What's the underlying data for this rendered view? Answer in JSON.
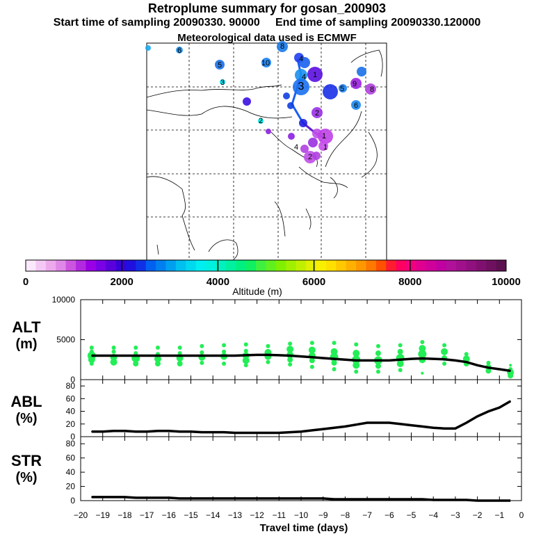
{
  "header": {
    "title": "Retroplume summary for gosan_200903",
    "sampling_line": "Start time of sampling 20090330. 90000     End time of sampling 20090330.120000",
    "met_line": "Meteorological data used is ECMWF"
  },
  "colorbar": {
    "label": "Altitude (m)",
    "ticks": [
      "0",
      "2000",
      "4000",
      "6000",
      "8000",
      "10000"
    ],
    "colors": [
      "#fce8fc",
      "#f4c8f4",
      "#ecaaec",
      "#e088e8",
      "#cc55e0",
      "#b22ae0",
      "#9a00e6",
      "#7a00e6",
      "#5a00dc",
      "#3a00d8",
      "#2010e0",
      "#1030e8",
      "#0060f0",
      "#0080f0",
      "#00a0f0",
      "#00c0f0",
      "#00d8f0",
      "#00eef0",
      "#00f0e0",
      "#00f0c0",
      "#00f0a0",
      "#00f080",
      "#10f060",
      "#40f040",
      "#60f020",
      "#80f000",
      "#a0f000",
      "#c0f000",
      "#e0f000",
      "#f8f000",
      "#ffe000",
      "#ffc800",
      "#ffb000",
      "#ff9800",
      "#ff7800",
      "#ff5000",
      "#ff1c30",
      "#ff0060",
      "#f20080",
      "#e00090",
      "#d0009a",
      "#c000a0",
      "#b0109a",
      "#a0108c",
      "#901080",
      "#801070",
      "#701060",
      "#5c1050"
    ]
  },
  "map_labels": [
    {
      "text": "8"
    },
    {
      "text": "6"
    },
    {
      "text": "5"
    },
    {
      "text": "10"
    },
    {
      "text": "3"
    },
    {
      "text": "4"
    },
    {
      "text": "2"
    },
    {
      "text": "1"
    },
    {
      "text": "4"
    },
    {
      "text": "3"
    },
    {
      "text": "2"
    },
    {
      "text": "1"
    },
    {
      "text": "1"
    },
    {
      "text": "9"
    },
    {
      "text": "8"
    },
    {
      "text": "6"
    },
    {
      "text": "4"
    },
    {
      "text": "5"
    },
    {
      "text": "2"
    }
  ],
  "panels": {
    "alt": {
      "label_line1": "ALT",
      "label_line2": "(m)"
    },
    "abl": {
      "label_line1": "ABL",
      "label_line2": "(%)"
    },
    "str": {
      "label_line1": "STR",
      "label_line2": "(%)"
    }
  },
  "x_axis": {
    "label": "Travel time (days)",
    "ticks": [
      "−20",
      "−19",
      "−18",
      "−17",
      "−16",
      "−15",
      "−14",
      "−13",
      "−12",
      "−11",
      "−10",
      "−9",
      "−8",
      "−7",
      "−6",
      "−5",
      "−4",
      "−3",
      "−2",
      "−1",
      "0"
    ]
  },
  "chart_data": [
    {
      "type": "line",
      "name": "alt",
      "title": "ALT (m)",
      "xlabel": "Travel time (days)",
      "ylabel": "Altitude (m)",
      "xlim": [
        -20,
        0
      ],
      "ylim": [
        0,
        10000
      ],
      "y_ticks": [
        "0",
        "5000",
        "10000"
      ],
      "x": [
        -19.5,
        -19,
        -18.5,
        -18,
        -17.5,
        -17,
        -16.5,
        -16,
        -15.5,
        -15,
        -14.5,
        -14,
        -13.5,
        -13,
        -12.5,
        -12,
        -11.5,
        -11,
        -10.5,
        -10,
        -9.5,
        -9,
        -8.5,
        -8,
        -7.5,
        -7,
        -6.5,
        -6,
        -5.5,
        -5,
        -4.5,
        -4,
        -3.5,
        -3,
        -2.5,
        -2,
        -1.5,
        -1,
        -0.5
      ],
      "values": [
        3000,
        3000,
        3000,
        3000,
        3000,
        3000,
        3000,
        3000,
        3000,
        3000,
        3000,
        3000,
        3000,
        3000,
        3050,
        3100,
        3100,
        3050,
        3000,
        2900,
        2800,
        2700,
        2600,
        2500,
        2400,
        2400,
        2400,
        2400,
        2500,
        2600,
        2650,
        2600,
        2550,
        2400,
        2200,
        1800,
        1500,
        1300,
        1100
      ],
      "scatter": {
        "color": "#22ee55",
        "x": [
          -19.5,
          -19.5,
          -19.5,
          -19.5,
          -19.5,
          -18.5,
          -18.5,
          -18.5,
          -18.5,
          -17.5,
          -17.5,
          -17.5,
          -17.5,
          -16.5,
          -16.5,
          -16.5,
          -16.5,
          -15.5,
          -15.5,
          -15.5,
          -15.5,
          -14.5,
          -14.5,
          -14.5,
          -14.5,
          -13.5,
          -13.5,
          -13.5,
          -13.5,
          -12.5,
          -12.5,
          -12.5,
          -12.5,
          -12.5,
          -11.5,
          -11.5,
          -11.5,
          -11.5,
          -10.5,
          -10.5,
          -10.5,
          -10.5,
          -10.5,
          -9.5,
          -9.5,
          -9.5,
          -9.5,
          -9.5,
          -8.5,
          -8.5,
          -8.5,
          -8.5,
          -8.5,
          -7.5,
          -7.5,
          -7.5,
          -7.5,
          -7.5,
          -6.5,
          -6.5,
          -6.5,
          -6.5,
          -6.5,
          -5.5,
          -5.5,
          -5.5,
          -5.5,
          -5.5,
          -4.5,
          -4.5,
          -4.5,
          -4.5,
          -4.5,
          -3.5,
          -3.5,
          -3.5,
          -3.5,
          -2.5,
          -2.5,
          -2.5,
          -1.5,
          -1.5,
          -1.5,
          -0.5,
          -0.5,
          -0.5,
          -0.5
        ],
        "y": [
          4000,
          3500,
          3000,
          2500,
          2000,
          4000,
          3500,
          2800,
          2200,
          4000,
          3300,
          2700,
          2000,
          4000,
          3200,
          2600,
          2000,
          4000,
          3300,
          2700,
          2000,
          4200,
          3400,
          2800,
          2100,
          4300,
          3500,
          2900,
          2000,
          4400,
          3600,
          3000,
          2400,
          1800,
          4200,
          3400,
          2900,
          2200,
          4500,
          3800,
          3100,
          2500,
          1900,
          4600,
          3700,
          3000,
          2400,
          1600,
          4600,
          3500,
          2800,
          2100,
          1300,
          4400,
          3300,
          2500,
          1800,
          1000,
          4200,
          3300,
          2400,
          1700,
          1000,
          4300,
          3500,
          2700,
          2000,
          1200,
          4700,
          3900,
          3200,
          2500,
          800,
          4300,
          3500,
          2700,
          2000,
          3200,
          2600,
          2000,
          2100,
          1600,
          1100,
          1800,
          1300,
          900,
          500
        ],
        "size": [
          3,
          3,
          6,
          5,
          3,
          3,
          3,
          5,
          5,
          3,
          3,
          6,
          4,
          3,
          3,
          5,
          4,
          3,
          3,
          5,
          4,
          3,
          3,
          5,
          3,
          3,
          3,
          5,
          3,
          3,
          3,
          5,
          5,
          3,
          3,
          5,
          5,
          3,
          3,
          5,
          5,
          4,
          3,
          3,
          5,
          5,
          4,
          3,
          3,
          5,
          6,
          4,
          3,
          3,
          5,
          6,
          5,
          3,
          3,
          4,
          6,
          4,
          3,
          3,
          4,
          6,
          5,
          3,
          3,
          5,
          6,
          5,
          2,
          3,
          5,
          4,
          3,
          3,
          5,
          4,
          3,
          4,
          4,
          2,
          3,
          5,
          4
        ]
      }
    },
    {
      "type": "line",
      "name": "abl",
      "title": "ABL (%)",
      "xlabel": "Travel time (days)",
      "ylabel": "ABL (%)",
      "xlim": [
        -20,
        0
      ],
      "ylim": [
        0,
        90
      ],
      "y_ticks": [
        "0",
        "20",
        "40",
        "60",
        "80"
      ],
      "x": [
        -19.5,
        -19,
        -18.5,
        -18,
        -17.5,
        -17,
        -16.5,
        -16,
        -15.5,
        -15,
        -14.5,
        -14,
        -13.5,
        -13,
        -12.5,
        -12,
        -11.5,
        -11,
        -10.5,
        -10,
        -9.5,
        -9,
        -8.5,
        -8,
        -7.5,
        -7,
        -6.5,
        -6,
        -5.5,
        -5,
        -4.5,
        -4,
        -3.5,
        -3,
        -2.5,
        -2,
        -1.5,
        -1,
        -0.5
      ],
      "values": [
        8,
        8,
        9,
        9,
        8,
        8,
        9,
        9,
        8,
        8,
        7,
        7,
        7,
        6,
        6,
        6,
        6,
        6,
        7,
        8,
        10,
        12,
        14,
        16,
        19,
        22,
        22,
        22,
        20,
        18,
        16,
        14,
        13,
        13,
        22,
        32,
        40,
        46,
        56
      ]
    },
    {
      "type": "line",
      "name": "str",
      "title": "STR (%)",
      "xlabel": "Travel time (days)",
      "ylabel": "STR (%)",
      "xlim": [
        -20,
        0
      ],
      "ylim": [
        0,
        90
      ],
      "y_ticks": [
        "0",
        "20",
        "40",
        "60",
        "80"
      ],
      "x": [
        -19.5,
        -19,
        -18.5,
        -18,
        -17.5,
        -17,
        -16.5,
        -16,
        -15.5,
        -15,
        -14.5,
        -14,
        -13.5,
        -13,
        -12.5,
        -12,
        -11.5,
        -11,
        -10.5,
        -10,
        -9.5,
        -9,
        -8.5,
        -8,
        -7.5,
        -7,
        -6.5,
        -6,
        -5.5,
        -5,
        -4.5,
        -4,
        -3.5,
        -3,
        -2.5,
        -2,
        -1.5,
        -1,
        -0.5
      ],
      "values": [
        5,
        5,
        5,
        5,
        4,
        4,
        4,
        4,
        3,
        3,
        3,
        3,
        3,
        3,
        3,
        3,
        3,
        3,
        3,
        3,
        3,
        3,
        2,
        2,
        2,
        2,
        2,
        2,
        2,
        2,
        2,
        1,
        1,
        1,
        1,
        0,
        0,
        0,
        0
      ]
    }
  ]
}
